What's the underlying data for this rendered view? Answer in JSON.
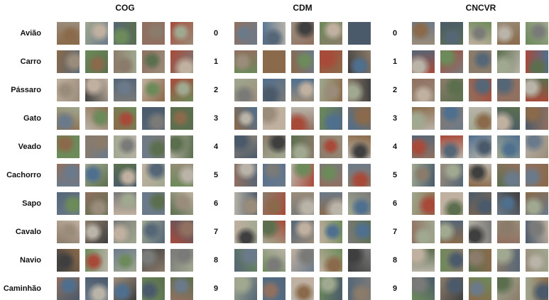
{
  "panels": [
    {
      "title": "COG"
    },
    {
      "title": "CDM"
    },
    {
      "title": "CNCVR"
    }
  ],
  "class_names": [
    "Avião",
    "Carro",
    "Pássaro",
    "Gato",
    "Veado",
    "Cachorro",
    "Sapo",
    "Cavalo",
    "Navio",
    "Caminhão"
  ],
  "class_indices": [
    "0",
    "1",
    "2",
    "3",
    "4",
    "5",
    "6",
    "7",
    "8",
    "9"
  ],
  "samples_per_class": 5,
  "palette": [
    "#7a7a78",
    "#8b7b6a",
    "#6b7a8a",
    "#5b6f4e",
    "#9a8c7a",
    "#a84a3a",
    "#4a5a6a",
    "#b9b3a8",
    "#3f3f3f",
    "#6c8a5a",
    "#8a6a4a",
    "#c0b0a0",
    "#556677",
    "#907060",
    "#a0a890",
    "#4f6f8f"
  ]
}
